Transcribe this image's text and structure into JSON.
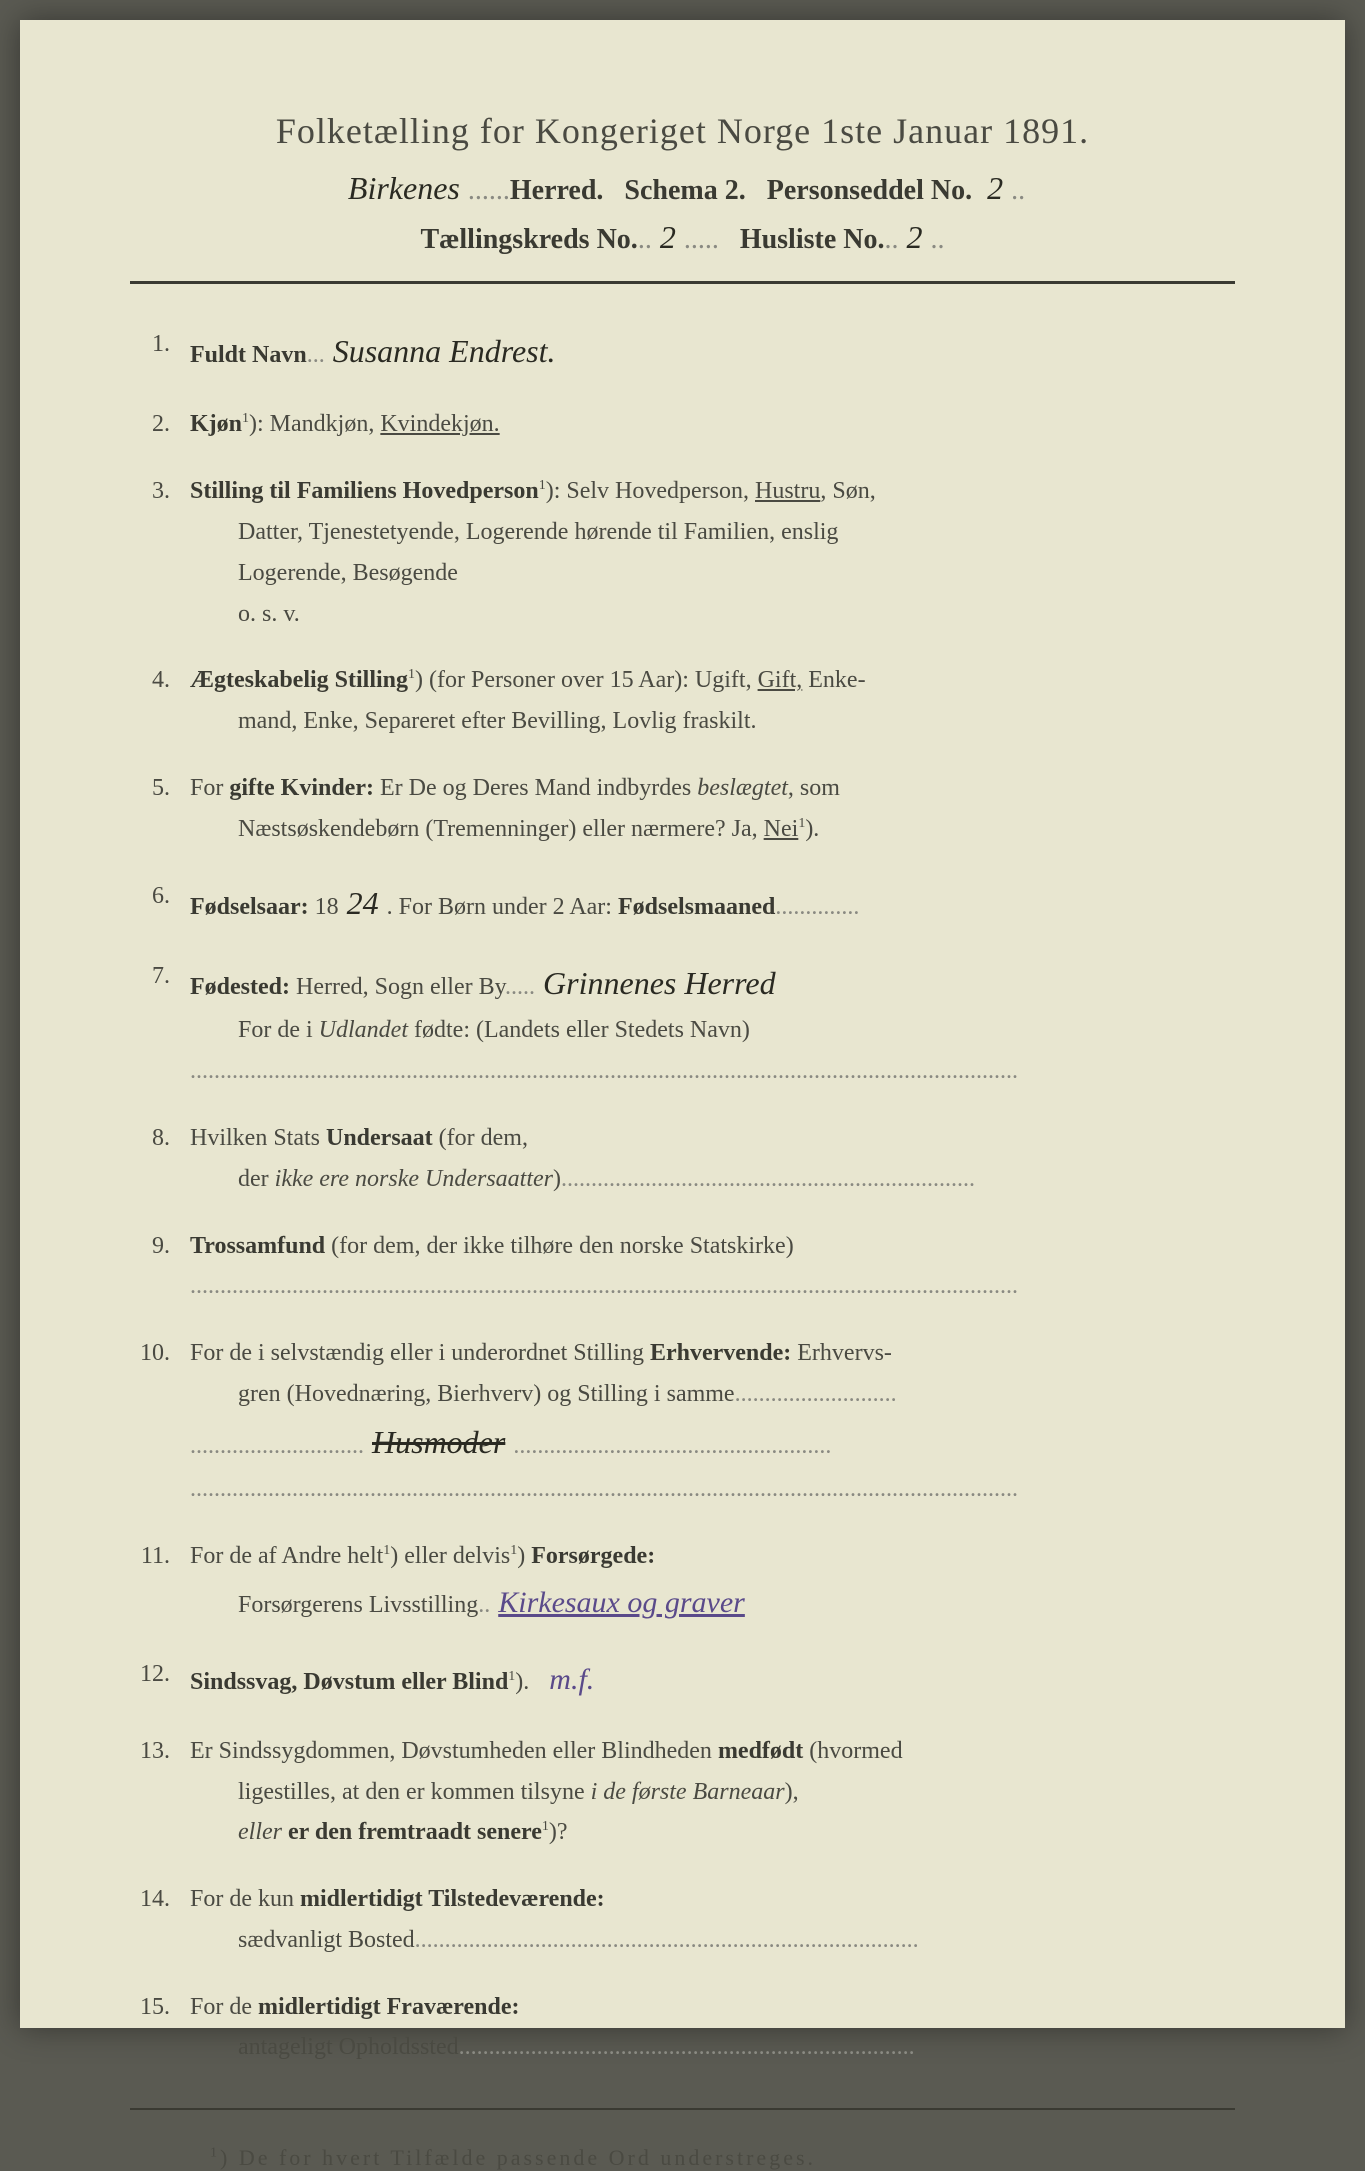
{
  "header": {
    "title": "Folketælling for Kongeriget Norge 1ste Januar 1891.",
    "herred_handwritten": "Birkenes",
    "herred_label": "Herred.",
    "schema": "Schema 2.",
    "personseddel_label": "Personseddel No.",
    "personseddel_no": "2",
    "taellingskreds_label": "Tællingskreds No.",
    "taellingskreds_no": "2",
    "husliste_label": "Husliste No.",
    "husliste_no": "2"
  },
  "items": {
    "1": {
      "num": "1.",
      "label": "Fuldt Navn",
      "handwritten": "Susanna Endrest."
    },
    "2": {
      "num": "2.",
      "label": "Kjøn",
      "sup": "1",
      "text": "): Mandkjøn, ",
      "underlined": "Kvindekjøn."
    },
    "3": {
      "num": "3.",
      "label": "Stilling til Familiens Hovedperson",
      "sup": "1",
      "text1": "): Selv Hovedperson, ",
      "underlined": "Hustru",
      "text2": ", Søn,",
      "line2": "Datter, Tjenestetyende, Logerende hørende til Familien, enslig",
      "line3": "Logerende, Besøgende",
      "line4": "o. s. v."
    },
    "4": {
      "num": "4.",
      "label": "Ægteskabelig Stilling",
      "sup": "1",
      "text1": ") (for Personer over 15 Aar): Ugift, ",
      "underlined": "Gift,",
      "text2": " Enke-",
      "line2": "mand, Enke, Separeret efter Bevilling, Lovlig fraskilt."
    },
    "5": {
      "num": "5.",
      "text1": "For ",
      "bold1": "gifte Kvinder:",
      "text2": " Er De og Deres Mand indbyrdes ",
      "italic1": "beslægtet",
      "text3": ", som",
      "line2a": "Næstsøskendebørn (Tremenninger) eller nærmere?  Ja, ",
      "underlined": "Nei",
      "sup": "1",
      "line2b": ")."
    },
    "6": {
      "num": "6.",
      "label": "Fødselsaar:",
      "prefix": " 18",
      "handwritten": "24",
      "text2": ".   For Børn under 2 Aar: ",
      "bold2": "Fødselsmaaned"
    },
    "7": {
      "num": "7.",
      "label": "Fødested:",
      "text1": " Herred, Sogn eller By",
      "handwritten": "Grinnenes Herred",
      "line2a": "For de i ",
      "italic": "Udlandet",
      "line2b": " fødte: (Landets eller Stedets Navn)"
    },
    "8": {
      "num": "8.",
      "text1": "Hvilken Stats ",
      "bold": "Undersaat",
      "text2": " (for dem,",
      "line2a": "der ",
      "italic": "ikke ere norske Undersaatter",
      "line2b": ")"
    },
    "9": {
      "num": "9.",
      "label": "Trossamfund",
      "text": "  (for  dem,  der  ikke  tilhøre  den   norske   Statskirke)"
    },
    "10": {
      "num": "10.",
      "text1": "For de i selvstændig eller i underordnet Stilling ",
      "bold1": "Erhvervende:",
      "text2": " Erhvervs-",
      "line2": "gren (Hovednæring, Bierhverv) og Stilling i samme",
      "handwritten": "Husmoder"
    },
    "11": {
      "num": "11.",
      "text1": "For de af Andre helt",
      "sup1": "1",
      "text2": ") eller delvis",
      "sup2": "1",
      "text3": ") ",
      "bold": "Forsørgede:",
      "line2": "Forsørgerens Livsstilling",
      "handwritten": "Kirkesaux og graver"
    },
    "12": {
      "num": "12.",
      "label": "Sindssvag, Døvstum eller Blind",
      "sup": "1",
      "text": ").",
      "handwritten": "m.f."
    },
    "13": {
      "num": "13.",
      "text1": "Er Sindssygdommen, Døvstumheden eller Blindheden ",
      "bold1": "medfødt",
      "text2": " (hvormed",
      "line2a": "ligestilles, at den er kommen tilsyne ",
      "italic": "i de første Barneaar",
      "line2b": "),",
      "line3a": "eller",
      "bold3": " er den fremtraadt senere",
      "sup": "1",
      "line3b": ")?"
    },
    "14": {
      "num": "14.",
      "text1": "For de kun ",
      "bold": "midlertidigt Tilstedeværende:",
      "line2": "sædvanligt Bosted"
    },
    "15": {
      "num": "15.",
      "text1": "For de ",
      "bold": "midlertidigt Fraværende:",
      "line2": "antageligt Opholdssted"
    }
  },
  "footnote": {
    "sup": "1",
    "text": ") De for hvert Tilfælde passende Ord understreges."
  },
  "colors": {
    "page_bg": "#e8e6d0",
    "text": "#4a4a42",
    "bold_text": "#3a3a32",
    "handwriting": "#2a2a22",
    "purple_ink": "#5a4a8a",
    "dots": "#8a8a82"
  }
}
